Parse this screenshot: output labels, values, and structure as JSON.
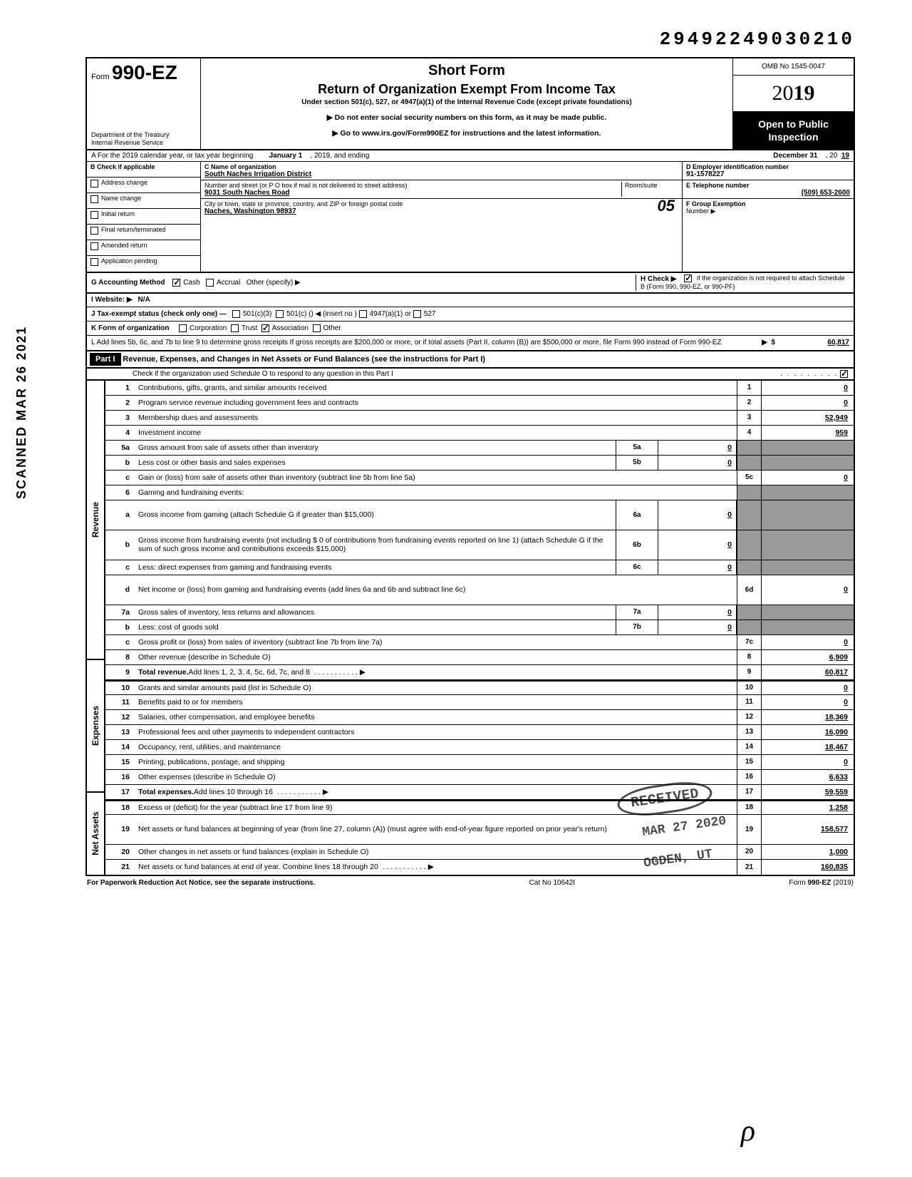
{
  "top_number": "29492249030210",
  "side_text": "SCANNED MAR 26 2021",
  "header": {
    "form_prefix": "Form",
    "form_no": "990-EZ",
    "dept_line1": "Department of the Treasury",
    "dept_line2": "Internal Revenue Service",
    "short_form": "Short Form",
    "title": "Return of Organization Exempt From Income Tax",
    "under_section": "Under section 501(c), 527, or 4947(a)(1) of the Internal Revenue Code (except private foundations)",
    "instr1": "▶ Do not enter social security numbers on this form, as it may be made public.",
    "instr2": "▶ Go to www.irs.gov/Form990EZ for instructions and the latest information.",
    "omb": "OMB No 1545-0047",
    "year": "2019",
    "open_public1": "Open to Public",
    "open_public2": "Inspection"
  },
  "line_a": {
    "prefix": "A For the 2019 calendar year, or tax year beginning",
    "begin": "January 1",
    "mid": ", 2019, and ending",
    "end": "December 31",
    "yr": ", 20",
    "yr_val": "19"
  },
  "col_b": {
    "header": "B Check if applicable",
    "items": [
      "Address change",
      "Name change",
      "Initial return",
      "Final return/terminated",
      "Amended return",
      "Application pending"
    ]
  },
  "col_c": {
    "name_label": "C Name of organization",
    "name": "South Naches Irrigation District",
    "addr_label": "Number and street (or P O  box if mail is not delivered to street address)",
    "room_label": "Room/suite",
    "addr": "9031 South Naches Road",
    "city_label": "City or town, state or province, country, and ZIP or foreign postal code",
    "city": "Naches, Washington  98937",
    "os": "05"
  },
  "col_d": {
    "ein_label": "D Employer identification number",
    "ein": "91-1578227",
    "tel_label": "E Telephone number",
    "tel": "(509) 653-2600",
    "group_label": "F Group Exemption",
    "group_label2": "Number ▶"
  },
  "g": {
    "label": "G Accounting Method",
    "cash": "Cash",
    "accrual": "Accrual",
    "other": "Other (specify) ▶"
  },
  "i": {
    "label": "I  Website: ▶",
    "val": "N/A"
  },
  "h": {
    "text": "H Check ▶",
    "rest": "if the organization is not required to attach Schedule B (Form 990, 990-EZ, or 990-PF)"
  },
  "j": {
    "label": "J Tax-exempt status (check only one) —",
    "o1": "501(c)(3)",
    "o2": "501(c) (",
    "o3": ") ◀ (insert no )",
    "o4": "4947(a)(1) or",
    "o5": "527"
  },
  "k": {
    "label": "K Form of organization",
    "o1": "Corporation",
    "o2": "Trust",
    "o3": "Association",
    "o4": "Other"
  },
  "l": {
    "text": "L Add lines 5b, 6c, and 7b to line 9 to determine gross receipts  If gross receipts are $200,000 or more, or if total assets (Part II, column (B)) are $500,000 or more, file Form 990 instead of Form 990-EZ",
    "val": "60,817"
  },
  "part1": {
    "label": "Part I",
    "title": "Revenue, Expenses, and Changes in Net Assets or Fund Balances (see the instructions for Part I)",
    "check_text": "Check if the organization used Schedule O to respond to any question in this Part I"
  },
  "rows": [
    {
      "no": "1",
      "desc": "Contributions, gifts, grants, and similar amounts received",
      "num": "1",
      "val": "0"
    },
    {
      "no": "2",
      "desc": "Program service revenue including government fees and contracts",
      "num": "2",
      "val": "0"
    },
    {
      "no": "3",
      "desc": "Membership dues and assessments",
      "num": "3",
      "val": "52,949"
    },
    {
      "no": "4",
      "desc": "Investment income",
      "num": "4",
      "val": "959"
    },
    {
      "no": "5a",
      "desc": "Gross amount from sale of assets other than inventory",
      "inner_num": "5a",
      "inner_val": "0",
      "shaded": true
    },
    {
      "no": "b",
      "desc": "Less  cost or other basis and sales expenses",
      "inner_num": "5b",
      "inner_val": "0",
      "shaded": true
    },
    {
      "no": "c",
      "desc": "Gain or (loss) from sale of assets other than inventory (subtract line 5b from line 5a)",
      "num": "5c",
      "val": "0"
    },
    {
      "no": "6",
      "desc": "Gaming and fundraising events:",
      "shaded": true,
      "noval": true
    },
    {
      "no": "a",
      "desc": "Gross income from gaming (attach Schedule G if greater than $15,000)",
      "inner_num": "6a",
      "inner_val": "0",
      "shaded": true,
      "tall": true
    },
    {
      "no": "b",
      "desc": "Gross income from fundraising events (not including  $                        0 of contributions from fundraising events reported on line 1) (attach Schedule G if the sum of such gross income and contributions exceeds $15,000)",
      "inner_num": "6b",
      "inner_val": "0",
      "shaded": true,
      "tall": true
    },
    {
      "no": "c",
      "desc": "Less: direct expenses from gaming and fundraising events",
      "inner_num": "6c",
      "inner_val": "0",
      "shaded": true
    },
    {
      "no": "d",
      "desc": "Net income or (loss) from gaming and fundraising events (add lines 6a and 6b and subtract line 6c)",
      "num": "6d",
      "val": "0",
      "tall": true
    },
    {
      "no": "7a",
      "desc": "Gross sales of inventory, less returns and allowances",
      "inner_num": "7a",
      "inner_val": "0",
      "shaded": true
    },
    {
      "no": "b",
      "desc": "Less: cost of goods sold",
      "inner_num": "7b",
      "inner_val": "0",
      "shaded": true
    },
    {
      "no": "c",
      "desc": "Gross profit or (loss) from sales of inventory (subtract line 7b from line 7a)",
      "num": "7c",
      "val": "0"
    },
    {
      "no": "8",
      "desc": "Other revenue (describe in Schedule O)",
      "num": "8",
      "val": "6,909"
    },
    {
      "no": "9",
      "desc": "Total revenue. Add lines 1, 2, 3, 4, 5c, 6d, 7c, and 8",
      "num": "9",
      "val": "60,817",
      "bold": true,
      "arrow": true
    }
  ],
  "expense_rows": [
    {
      "no": "10",
      "desc": "Grants and similar amounts paid (list in Schedule O)",
      "num": "10",
      "val": "0"
    },
    {
      "no": "11",
      "desc": "Benefits paid to or for members",
      "num": "11",
      "val": "0"
    },
    {
      "no": "12",
      "desc": "Salaries, other compensation, and employee benefits",
      "num": "12",
      "val": "18,369"
    },
    {
      "no": "13",
      "desc": "Professional fees and other payments to independent contractors",
      "num": "13",
      "val": "16,090"
    },
    {
      "no": "14",
      "desc": "Occupancy, rent, utilities, and maintenance",
      "num": "14",
      "val": "18,467"
    },
    {
      "no": "15",
      "desc": "Printing, publications, postage, and shipping",
      "num": "15",
      "val": "0"
    },
    {
      "no": "16",
      "desc": "Other expenses (describe in Schedule O)",
      "num": "16",
      "val": "6,633"
    },
    {
      "no": "17",
      "desc": "Total expenses. Add lines 10 through 16",
      "num": "17",
      "val": "59,559",
      "bold": true,
      "arrow": true
    }
  ],
  "net_rows": [
    {
      "no": "18",
      "desc": "Excess or (deficit) for the year (subtract line 17 from line 9)",
      "num": "18",
      "val": "1,258"
    },
    {
      "no": "19",
      "desc": "Net assets or fund balances at beginning of year (from line 27, column (A)) (must agree with end-of-year figure reported on prior year's return)",
      "num": "19",
      "val": "158,577",
      "tall": true
    },
    {
      "no": "20",
      "desc": "Other changes in net assets or fund balances (explain in Schedule O)",
      "num": "20",
      "val": "1,000"
    },
    {
      "no": "21",
      "desc": "Net assets or fund balances at end of year. Combine lines 18 through 20",
      "num": "21",
      "val": "160,835",
      "arrow": true
    }
  ],
  "section_labels": {
    "revenue": "Revenue",
    "expenses": "Expenses",
    "net": "Net Assets"
  },
  "footer": {
    "left": "For Paperwork Reduction Act Notice, see the separate instructions.",
    "mid": "Cat  No  10642I",
    "right": "Form 990-EZ (2019)"
  },
  "stamp": {
    "received": "RECEIVED",
    "date": "MAR 27 2020",
    "place": "OGDEN, UT"
  },
  "sig": "ρ"
}
